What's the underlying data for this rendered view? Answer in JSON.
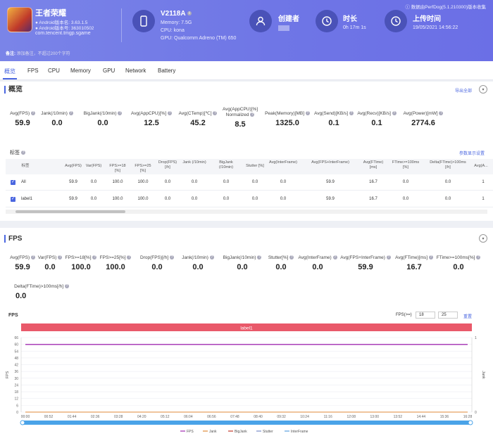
{
  "header": {
    "app_name": "王者荣耀",
    "android_version": "Android版本名: 3.63.1.5",
    "android_code": "Android版本号: 363010502",
    "package": "com.tencent.tmgp.sgame",
    "device_name": "V2118A",
    "memory": "Memory: 7.5G",
    "cpu": "CPU: kona",
    "gpu": "GPU: Qualcomm Adreno (TM) 650",
    "creator_label": "创建者",
    "duration_label": "时长",
    "duration_value": "0h 17m 1s",
    "upload_label": "上传时间",
    "upload_value": "19/05/2021 14:56:22",
    "perfdog": "数据由PerfDog(5.1.210300)版本收集",
    "note_label": "备注:",
    "note_placeholder": "添加备注，不超过200个字符"
  },
  "tabs": [
    "概览",
    "FPS",
    "CPU",
    "Memory",
    "GPU",
    "Network",
    "Battery"
  ],
  "overview": {
    "title": "概览",
    "export": "导出全部",
    "stats": [
      {
        "label": "Avg(FPS)",
        "value": "59.9"
      },
      {
        "label": "Jank(/10min)",
        "value": "0.0"
      },
      {
        "label": "BigJank(/10min)",
        "value": "0.0"
      },
      {
        "label": "Avg(AppCPU)[%]",
        "value": "12.5"
      },
      {
        "label": "Avg(CTemp)[℃]",
        "value": "45.2"
      },
      {
        "label": "Avg(AppCPU)[%] Normalized",
        "value": "8.5"
      },
      {
        "label": "Peak(Memory)[MB]",
        "value": "1325.0"
      },
      {
        "label": "Avg(Send)[KB/s]",
        "value": "0.1"
      },
      {
        "label": "Avg(Recv)[KB/s]",
        "value": "0.1"
      },
      {
        "label": "Avg(Power)[mW]",
        "value": "2774.6"
      }
    ]
  },
  "labels": {
    "title": "标签",
    "settings": "参数显示设置",
    "headers": [
      "标签",
      "Avg(FPS)",
      "Var(FPS)",
      "FPS>=18 [%]",
      "FPS>=25 [%]",
      "Drop(FPS) [/h]",
      "Jank (/10min)",
      "BigJank (/10min)",
      "Stutter [%]",
      "Avg(InterFrame)",
      "Avg(FPS+InterFrame)",
      "Avg(FTime) [ms]",
      "FTime>=100ms [%]",
      "Delta(FTime)>100ms [/h]",
      "Avg(A..."
    ],
    "rows": [
      {
        "name": "All",
        "cells": [
          "59.9",
          "0.0",
          "100.0",
          "100.0",
          "0.0",
          "0.0",
          "0.0",
          "0.0",
          "0.0",
          "59.9",
          "16.7",
          "0.0",
          "0.0",
          "1"
        ]
      },
      {
        "name": "label1",
        "cells": [
          "59.9",
          "0.0",
          "100.0",
          "100.0",
          "0.0",
          "0.0",
          "0.0",
          "0.0",
          "0.0",
          "59.9",
          "16.7",
          "0.0",
          "0.0",
          "1"
        ]
      }
    ]
  },
  "fps": {
    "title": "FPS",
    "stats": [
      {
        "label": "Avg(FPS)",
        "value": "59.9"
      },
      {
        "label": "Var(FPS)",
        "value": "0.0"
      },
      {
        "label": "FPS>=18[%]",
        "value": "100.0"
      },
      {
        "label": "FPS>=25[%]",
        "value": "100.0"
      },
      {
        "label": "Drop(FPS)[/h]",
        "value": "0.0"
      },
      {
        "label": "Jank(/10min)",
        "value": "0.0"
      },
      {
        "label": "BigJank(/10min)",
        "value": "0.0"
      },
      {
        "label": "Stutter[%]",
        "value": "0.0"
      },
      {
        "label": "Avg(InterFrame)",
        "value": "0.0"
      },
      {
        "label": "Avg(FPS+InterFrame)",
        "value": "59.9"
      },
      {
        "label": "Avg(FTime)[ms]",
        "value": "16.7"
      },
      {
        "label": "FTime>=100ms[%]",
        "value": "0.0"
      }
    ],
    "delta_label": "Delta(FTime)>100ms[/h]",
    "delta_value": "0.0",
    "chart_title": "FPS",
    "fps_ge_label": "FPS(>=)",
    "fps_ge_a": "18",
    "fps_ge_b": "25",
    "reset": "重置"
  },
  "chart_data": {
    "type": "line",
    "title": "FPS",
    "label_band": "label1",
    "ylabel": "FPS",
    "y2label": "Jank",
    "ylim": [
      0,
      66
    ],
    "y_ticks": [
      "66",
      "60",
      "54",
      "48",
      "42",
      "36",
      "30",
      "24",
      "18",
      "12",
      "6",
      "0"
    ],
    "y2_ticks": [
      "1",
      "0"
    ],
    "x_ticks": [
      "00:00",
      "00:52",
      "01:44",
      "02:36",
      "03:28",
      "04:20",
      "05:12",
      "06:04",
      "06:56",
      "07:48",
      "08:40",
      "09:32",
      "10:24",
      "11:16",
      "12:08",
      "13:00",
      "13:52",
      "14:44",
      "15:36",
      "16:28"
    ],
    "series": [
      {
        "name": "FPS",
        "color": "#a02cb0",
        "values": [
          59.9,
          59.9,
          59.9,
          59.9,
          59.9,
          59.9,
          59.9,
          59.9,
          59.9,
          59.9,
          59.9,
          59.9,
          59.9,
          59.9,
          59.9,
          59.9,
          59.9,
          59.9,
          59.9,
          59.9
        ]
      },
      {
        "name": "Jank",
        "color": "#e08a3a",
        "values": [
          0,
          0,
          0,
          0,
          0,
          0,
          0,
          0,
          0,
          0,
          0,
          0,
          0,
          0,
          0,
          0,
          0,
          0,
          0,
          0
        ]
      },
      {
        "name": "BigJank",
        "color": "#c0392b",
        "values": [
          0,
          0,
          0,
          0,
          0,
          0,
          0,
          0,
          0,
          0,
          0,
          0,
          0,
          0,
          0,
          0,
          0,
          0,
          0,
          0
        ]
      },
      {
        "name": "Stutter",
        "color": "#7a8cc8",
        "values": [
          0,
          0,
          0,
          0,
          0,
          0,
          0,
          0,
          0,
          0,
          0,
          0,
          0,
          0,
          0,
          0,
          0,
          0,
          0,
          0
        ]
      },
      {
        "name": "InterFrame",
        "color": "#5aa0e0",
        "values": [
          0,
          0,
          0,
          0,
          0,
          0,
          0,
          0,
          0,
          0,
          0,
          0,
          0,
          0,
          0,
          0,
          0,
          0,
          0,
          0
        ]
      }
    ],
    "legend_placement": "bottom",
    "grid": true
  }
}
